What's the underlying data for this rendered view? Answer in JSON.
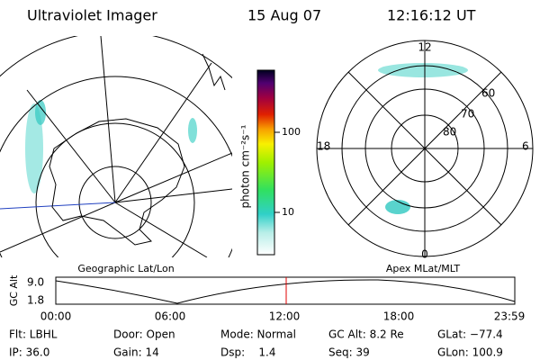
{
  "header": {
    "title": "Ultraviolet Imager",
    "date": "15 Aug 07",
    "time": "12:16:12 UT"
  },
  "left_map": {
    "label": "Geographic Lat/Lon"
  },
  "right_map": {
    "label": "Apex MLat/MLT",
    "mlt_labels": [
      "12",
      "18",
      "6",
      "0"
    ],
    "mlat_labels": [
      "60",
      "70",
      "80"
    ]
  },
  "colorbar": {
    "label": "photon cm⁻²s⁻¹",
    "ticks": [
      "100",
      "10"
    ]
  },
  "altitude_plot": {
    "ylabel": "GC Alt",
    "yticks": [
      "9.0",
      "1.8"
    ],
    "xticks": [
      "00:00",
      "06:00",
      "12:00",
      "18:00",
      "23:59"
    ]
  },
  "footer": {
    "rows": [
      [
        "Flt: LBHL",
        "Door: Open",
        "Mode: Normal",
        "GC Alt: 8.2 Re",
        "GLat: −77.4"
      ],
      [
        "IP: 36.0",
        "Gain: 14",
        "Dsp:    1.4",
        "Seq: 39",
        "GLon: 100.9"
      ]
    ]
  }
}
